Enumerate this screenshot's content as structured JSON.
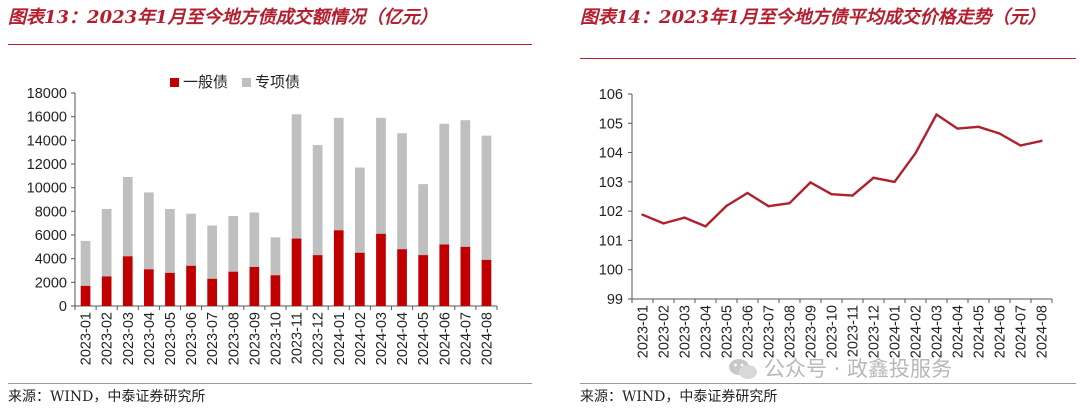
{
  "left": {
    "title": "图表13：2023年1月至今地方债成交额情况（亿元）",
    "source": "来源：WIND，中泰证券研究所"
  },
  "right": {
    "title": "图表14：2023年1月至今地方债平均成交价格走势（元）",
    "source": "来源：WIND，中泰证券研究所"
  },
  "watermark": {
    "text": "公众号 · 政鑫投服务",
    "icon": "wechat-icon"
  },
  "colors": {
    "title_red": "#b41e2e",
    "bar_red": "#c00000",
    "bar_grey": "#bfbfbf",
    "line_red": "#b0202e"
  },
  "chart_data": [
    {
      "type": "bar",
      "stacked": true,
      "categories": [
        "2023-01",
        "2023-02",
        "2023-03",
        "2023-04",
        "2023-05",
        "2023-06",
        "2023-07",
        "2023-08",
        "2023-09",
        "2023-10",
        "2023-11",
        "2023-12",
        "2024-01",
        "2024-02",
        "2024-03",
        "2024-04",
        "2024-05",
        "2024-06",
        "2024-07",
        "2024-08"
      ],
      "series": [
        {
          "name": "一般债",
          "color": "#c00000",
          "values": [
            1700,
            2500,
            4200,
            3100,
            2800,
            3400,
            2300,
            2900,
            3300,
            2600,
            5700,
            4300,
            6400,
            4500,
            6100,
            4800,
            4300,
            5200,
            5000,
            3900
          ]
        },
        {
          "name": "专项债",
          "color": "#bfbfbf",
          "values": [
            3800,
            5700,
            6700,
            6500,
            5400,
            4400,
            4500,
            4700,
            4600,
            3200,
            10500,
            9300,
            9500,
            7200,
            9800,
            9800,
            6000,
            10200,
            10700,
            10500
          ]
        }
      ],
      "ylim": [
        0,
        18000
      ],
      "yticks": [
        0,
        2000,
        4000,
        6000,
        8000,
        10000,
        12000,
        14000,
        16000,
        18000
      ],
      "legend": "top-center",
      "grid": false
    },
    {
      "type": "line",
      "categories": [
        "2023-01",
        "2023-02",
        "2023-03",
        "2023-04",
        "2023-05",
        "2023-06",
        "2023-07",
        "2023-08",
        "2023-09",
        "2023-10",
        "2023-11",
        "2023-12",
        "2024-01",
        "2024-02",
        "2024-03",
        "2024-04",
        "2024-05",
        "2024-06",
        "2024-07",
        "2024-08"
      ],
      "series": [
        {
          "color": "#b0202e",
          "values": [
            101.88,
            101.58,
            101.78,
            101.48,
            102.18,
            102.62,
            102.17,
            102.27,
            102.98,
            102.58,
            102.53,
            103.14,
            103.0,
            103.98,
            105.3,
            104.82,
            104.88,
            104.65,
            104.24,
            104.4
          ]
        }
      ],
      "ylim": [
        99,
        106
      ],
      "yticks": [
        99,
        100,
        101,
        102,
        103,
        104,
        105,
        106
      ],
      "grid": false
    }
  ]
}
